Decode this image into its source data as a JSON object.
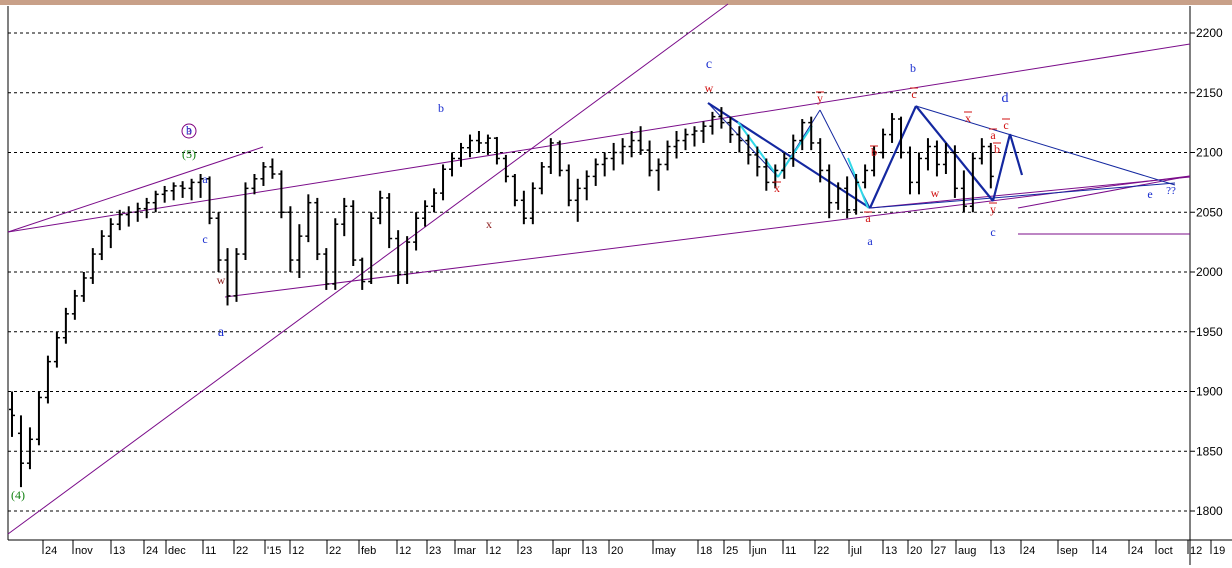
{
  "colors": {
    "top_bar": "#c8a088",
    "grid": "#000000",
    "price": "#000000",
    "channel": "#7b0d8a",
    "blue_line": "#1428a0",
    "cyan_line": "#30d8e8",
    "label_blue": "#1a2ecf",
    "label_red": "#d01010",
    "label_purple": "#800080",
    "label_green": "#108010",
    "label_maroon": "#8b1a1a"
  },
  "chart_data": {
    "type": "ohlc",
    "title": "",
    "xlabel": "",
    "ylabel": "",
    "ylim": [
      1775,
      2225
    ],
    "yticks": [
      1800,
      1850,
      1900,
      1950,
      2000,
      2050,
      2100,
      2150,
      2200
    ],
    "grid": true,
    "x_tick_labels": [
      "24",
      "nov",
      "13",
      "24",
      "dec",
      "11",
      "22",
      "'15",
      "12",
      "22",
      "feb",
      "12",
      "23",
      "mar",
      "12",
      "23",
      "apr",
      "13",
      "20",
      "may",
      "18",
      "25",
      "jun",
      "11",
      "22",
      "jul",
      "13",
      "20",
      "27",
      "aug",
      "13",
      "24",
      "sep",
      "14",
      "24",
      "oct",
      "12",
      "19"
    ],
    "series": [
      {
        "values": [
          [
            1885,
            1900,
            1862,
            1880
          ],
          [
            1865,
            1880,
            1820,
            1840
          ],
          [
            1840,
            1870,
            1835,
            1860
          ],
          [
            1860,
            1900,
            1855,
            1895
          ],
          [
            1895,
            1930,
            1890,
            1925
          ],
          [
            1925,
            1950,
            1920,
            1945
          ],
          [
            1945,
            1970,
            1940,
            1965
          ],
          [
            1965,
            1985,
            1960,
            1980
          ],
          [
            1980,
            2000,
            1975,
            1995
          ],
          [
            1995,
            2020,
            1990,
            2015
          ],
          [
            2015,
            2035,
            2010,
            2030
          ],
          [
            2030,
            2045,
            2020,
            2040
          ],
          [
            2040,
            2052,
            2035,
            2048
          ],
          [
            2048,
            2055,
            2038,
            2050
          ],
          [
            2050,
            2058,
            2042,
            2053
          ],
          [
            2053,
            2062,
            2045,
            2058
          ],
          [
            2058,
            2068,
            2050,
            2065
          ],
          [
            2065,
            2072,
            2058,
            2068
          ],
          [
            2068,
            2075,
            2060,
            2072
          ],
          [
            2072,
            2076,
            2062,
            2070
          ],
          [
            2070,
            2078,
            2060,
            2075
          ],
          [
            2075,
            2082,
            2062,
            2078
          ],
          [
            2078,
            2080,
            2040,
            2045
          ],
          [
            2045,
            2050,
            2000,
            2010
          ],
          [
            2010,
            2020,
            1972,
            1980
          ],
          [
            1980,
            2020,
            1975,
            2015
          ],
          [
            2015,
            2075,
            2010,
            2070
          ],
          [
            2070,
            2082,
            2065,
            2078
          ],
          [
            2078,
            2092,
            2072,
            2088
          ],
          [
            2088,
            2095,
            2078,
            2082
          ],
          [
            2082,
            2085,
            2045,
            2050
          ],
          [
            2050,
            2055,
            2000,
            2010
          ],
          [
            2010,
            2040,
            1995,
            2030
          ],
          [
            2030,
            2065,
            2025,
            2058
          ],
          [
            2058,
            2062,
            2010,
            2015
          ],
          [
            2015,
            2020,
            1985,
            1990
          ],
          [
            1990,
            2045,
            1985,
            2040
          ],
          [
            2040,
            2062,
            2030,
            2055
          ],
          [
            2055,
            2060,
            2005,
            2010
          ],
          [
            2010,
            2012,
            1985,
            1992
          ],
          [
            1992,
            2050,
            1990,
            2045
          ],
          [
            2045,
            2068,
            2040,
            2062
          ],
          [
            2062,
            2066,
            2020,
            2028
          ],
          [
            2028,
            2035,
            1990,
            1998
          ],
          [
            1998,
            2030,
            1990,
            2025
          ],
          [
            2025,
            2050,
            2018,
            2045
          ],
          [
            2045,
            2060,
            2038,
            2055
          ],
          [
            2055,
            2070,
            2050,
            2066
          ],
          [
            2066,
            2090,
            2060,
            2086
          ],
          [
            2086,
            2100,
            2080,
            2095
          ],
          [
            2095,
            2108,
            2088,
            2104
          ],
          [
            2104,
            2115,
            2096,
            2110
          ],
          [
            2110,
            2118,
            2100,
            2108
          ],
          [
            2108,
            2115,
            2098,
            2112
          ],
          [
            2112,
            2113,
            2090,
            2095
          ],
          [
            2095,
            2098,
            2075,
            2080
          ],
          [
            2080,
            2082,
            2055,
            2060
          ],
          [
            2060,
            2068,
            2040,
            2045
          ],
          [
            2045,
            2075,
            2040,
            2070
          ],
          [
            2070,
            2092,
            2065,
            2088
          ],
          [
            2088,
            2112,
            2082,
            2108
          ],
          [
            2108,
            2110,
            2080,
            2085
          ],
          [
            2085,
            2090,
            2055,
            2060
          ],
          [
            2060,
            2078,
            2042,
            2070
          ],
          [
            2070,
            2085,
            2060,
            2080
          ],
          [
            2080,
            2095,
            2072,
            2090
          ],
          [
            2090,
            2100,
            2080,
            2095
          ],
          [
            2095,
            2108,
            2085,
            2100
          ],
          [
            2100,
            2112,
            2090,
            2105
          ],
          [
            2105,
            2118,
            2096,
            2110
          ],
          [
            2110,
            2122,
            2098,
            2102
          ],
          [
            2102,
            2110,
            2080,
            2085
          ],
          [
            2085,
            2095,
            2068,
            2090
          ],
          [
            2090,
            2110,
            2085,
            2105
          ],
          [
            2105,
            2118,
            2095,
            2110
          ],
          [
            2110,
            2120,
            2102,
            2115
          ],
          [
            2115,
            2122,
            2105,
            2118
          ],
          [
            2118,
            2126,
            2108,
            2122
          ],
          [
            2122,
            2134,
            2115,
            2130
          ],
          [
            2130,
            2138,
            2120,
            2125
          ],
          [
            2125,
            2130,
            2108,
            2115
          ],
          [
            2115,
            2122,
            2100,
            2110
          ],
          [
            2110,
            2115,
            2090,
            2098
          ],
          [
            2098,
            2105,
            2080,
            2088
          ],
          [
            2088,
            2095,
            2068,
            2075
          ],
          [
            2075,
            2090,
            2070,
            2085
          ],
          [
            2085,
            2100,
            2078,
            2095
          ],
          [
            2095,
            2115,
            2088,
            2110
          ],
          [
            2110,
            2128,
            2102,
            2125
          ],
          [
            2125,
            2130,
            2102,
            2108
          ],
          [
            2108,
            2112,
            2075,
            2085
          ],
          [
            2085,
            2090,
            2045,
            2058
          ],
          [
            2058,
            2075,
            2052,
            2070
          ],
          [
            2070,
            2080,
            2045,
            2052
          ],
          [
            2052,
            2082,
            2048,
            2075
          ],
          [
            2075,
            2090,
            2070,
            2085
          ],
          [
            2085,
            2105,
            2080,
            2100
          ],
          [
            2100,
            2120,
            2095,
            2115
          ],
          [
            2115,
            2133,
            2108,
            2128
          ],
          [
            2128,
            2130,
            2095,
            2100
          ],
          [
            2100,
            2105,
            2065,
            2075
          ],
          [
            2075,
            2100,
            2065,
            2095
          ],
          [
            2095,
            2112,
            2085,
            2105
          ],
          [
            2105,
            2110,
            2080,
            2090
          ],
          [
            2090,
            2108,
            2082,
            2100
          ],
          [
            2100,
            2106,
            2062,
            2070
          ],
          [
            2070,
            2085,
            2050,
            2055
          ],
          [
            2055,
            2100,
            2050,
            2095
          ],
          [
            2095,
            2112,
            2090,
            2105
          ],
          [
            2105,
            2108,
            2070,
            2080
          ]
        ]
      }
    ],
    "annotations": [
      {
        "text": "(4)",
        "color": "green"
      },
      {
        "text": "(5)",
        "color": "green"
      },
      {
        "text": "3",
        "color": "purple",
        "circled": true
      },
      {
        "text": "b",
        "color": "blue"
      },
      {
        "text": "a",
        "color": "blue"
      },
      {
        "text": "c",
        "color": "blue"
      },
      {
        "text": "w",
        "color": "maroon"
      },
      {
        "text": "a",
        "color": "blue"
      },
      {
        "text": "b",
        "color": "blue"
      },
      {
        "text": "x",
        "color": "maroon"
      },
      {
        "text": "c",
        "color": "blue"
      },
      {
        "text": "w",
        "color": "red"
      },
      {
        "text": "x",
        "color": "red"
      },
      {
        "text": "y",
        "color": "red"
      },
      {
        "text": "a",
        "color": "red"
      },
      {
        "text": "b",
        "color": "red"
      },
      {
        "text": "a",
        "color": "blue"
      },
      {
        "text": "b",
        "color": "blue"
      },
      {
        "text": "c",
        "color": "red"
      },
      {
        "text": "w",
        "color": "red"
      },
      {
        "text": "x",
        "color": "red"
      },
      {
        "text": "d",
        "color": "blue"
      },
      {
        "text": "a",
        "color": "red"
      },
      {
        "text": "c",
        "color": "red"
      },
      {
        "text": "y",
        "color": "red"
      },
      {
        "text": "b",
        "color": "red"
      },
      {
        "text": "c",
        "color": "blue"
      },
      {
        "text": "e",
        "color": "blue"
      },
      {
        "text": "??",
        "color": "blue"
      }
    ]
  }
}
